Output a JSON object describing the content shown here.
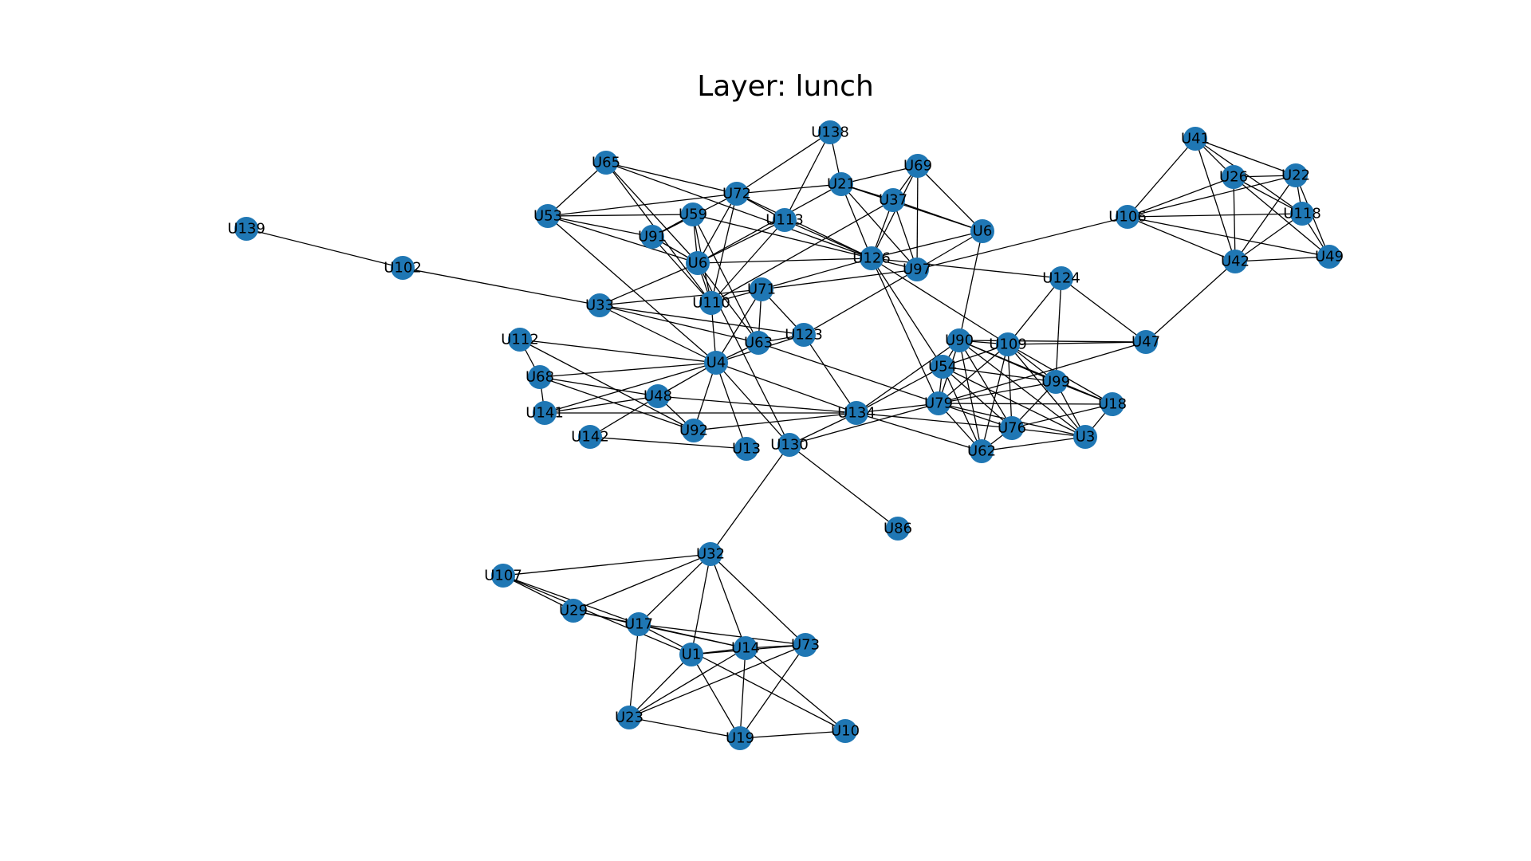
{
  "title": "Layer: lunch",
  "colors": {
    "node": "#1f77b4",
    "edge": "#000000",
    "background": "#ffffff"
  },
  "graph": {
    "nodes": [
      "U139",
      "U102",
      "U33",
      "U112",
      "U68",
      "U141",
      "U142",
      "U48",
      "U4",
      "U92",
      "U13",
      "U130",
      "U86",
      "U65",
      "U53",
      "U91",
      "U59",
      "U6",
      "U72",
      "U110",
      "U71",
      "U63",
      "U123",
      "U113",
      "U138",
      "U21",
      "U69",
      "U37",
      "U6b",
      "U126",
      "U97",
      "U124",
      "U106",
      "U41",
      "U26",
      "U22",
      "U118",
      "U49",
      "U42",
      "U47",
      "U90",
      "U109",
      "U54",
      "U99",
      "U18",
      "U79",
      "U134",
      "U76",
      "U3",
      "U62",
      "U32",
      "U107",
      "U29",
      "U17",
      "U1",
      "U14",
      "U73",
      "U23",
      "U19",
      "U10"
    ],
    "labels": {
      "U6b": "U6"
    },
    "edges": [
      [
        "U139",
        "U102"
      ],
      [
        "U102",
        "U33"
      ],
      [
        "U33",
        "U71"
      ],
      [
        "U33",
        "U63"
      ],
      [
        "U33",
        "U123"
      ],
      [
        "U33",
        "U4"
      ],
      [
        "U33",
        "U6"
      ],
      [
        "U112",
        "U68"
      ],
      [
        "U112",
        "U4"
      ],
      [
        "U112",
        "U92"
      ],
      [
        "U68",
        "U141"
      ],
      [
        "U68",
        "U48"
      ],
      [
        "U68",
        "U92"
      ],
      [
        "U68",
        "U4"
      ],
      [
        "U141",
        "U4"
      ],
      [
        "U141",
        "U48"
      ],
      [
        "U141",
        "U134"
      ],
      [
        "U142",
        "U48"
      ],
      [
        "U142",
        "U13"
      ],
      [
        "U48",
        "U92"
      ],
      [
        "U48",
        "U134"
      ],
      [
        "U48",
        "U4"
      ],
      [
        "U4",
        "U92"
      ],
      [
        "U4",
        "U13"
      ],
      [
        "U4",
        "U130"
      ],
      [
        "U4",
        "U134"
      ],
      [
        "U4",
        "U63"
      ],
      [
        "U4",
        "U123"
      ],
      [
        "U4",
        "U110"
      ],
      [
        "U4",
        "U53"
      ],
      [
        "U4",
        "U71"
      ],
      [
        "U92",
        "U134"
      ],
      [
        "U130",
        "U134"
      ],
      [
        "U130",
        "U86"
      ],
      [
        "U130",
        "U32"
      ],
      [
        "U130",
        "U6"
      ],
      [
        "U130",
        "U79"
      ],
      [
        "U65",
        "U53"
      ],
      [
        "U65",
        "U72"
      ],
      [
        "U65",
        "U110"
      ],
      [
        "U65",
        "U126"
      ],
      [
        "U65",
        "U6"
      ],
      [
        "U53",
        "U72"
      ],
      [
        "U53",
        "U59"
      ],
      [
        "U53",
        "U91"
      ],
      [
        "U53",
        "U6"
      ],
      [
        "U91",
        "U59"
      ],
      [
        "U91",
        "U6"
      ],
      [
        "U91",
        "U110"
      ],
      [
        "U59",
        "U6"
      ],
      [
        "U59",
        "U126"
      ],
      [
        "U59",
        "U63"
      ],
      [
        "U59",
        "U110"
      ],
      [
        "U72",
        "U6"
      ],
      [
        "U72",
        "U110"
      ],
      [
        "U72",
        "U126"
      ],
      [
        "U72",
        "U21"
      ],
      [
        "U72",
        "U113"
      ],
      [
        "U72",
        "U138"
      ],
      [
        "U72",
        "U91"
      ],
      [
        "U6",
        "U21"
      ],
      [
        "U6",
        "U126"
      ],
      [
        "U6",
        "U113"
      ],
      [
        "U6",
        "U110"
      ],
      [
        "U6",
        "U63"
      ],
      [
        "U110",
        "U113"
      ],
      [
        "U110",
        "U71"
      ],
      [
        "U110",
        "U37"
      ],
      [
        "U71",
        "U97"
      ],
      [
        "U71",
        "U123"
      ],
      [
        "U71",
        "U63"
      ],
      [
        "U71",
        "U126"
      ],
      [
        "U63",
        "U123"
      ],
      [
        "U63",
        "U79"
      ],
      [
        "U123",
        "U97"
      ],
      [
        "U123",
        "U134"
      ],
      [
        "U113",
        "U138"
      ],
      [
        "U113",
        "U126"
      ],
      [
        "U138",
        "U21"
      ],
      [
        "U21",
        "U69"
      ],
      [
        "U21",
        "U37"
      ],
      [
        "U21",
        "U126"
      ],
      [
        "U21",
        "U97"
      ],
      [
        "U21",
        "U6b"
      ],
      [
        "U69",
        "U37"
      ],
      [
        "U69",
        "U6b"
      ],
      [
        "U69",
        "U97"
      ],
      [
        "U69",
        "U126"
      ],
      [
        "U37",
        "U6b"
      ],
      [
        "U37",
        "U97"
      ],
      [
        "U37",
        "U126"
      ],
      [
        "U6b",
        "U97"
      ],
      [
        "U6b",
        "U90"
      ],
      [
        "U6b",
        "U126"
      ],
      [
        "U126",
        "U97"
      ],
      [
        "U126",
        "U124"
      ],
      [
        "U126",
        "U54"
      ],
      [
        "U126",
        "U79"
      ],
      [
        "U126",
        "U109"
      ],
      [
        "U97",
        "U106"
      ],
      [
        "U124",
        "U109"
      ],
      [
        "U124",
        "U99"
      ],
      [
        "U124",
        "U47"
      ],
      [
        "U106",
        "U41"
      ],
      [
        "U106",
        "U26"
      ],
      [
        "U106",
        "U22"
      ],
      [
        "U106",
        "U118"
      ],
      [
        "U106",
        "U42"
      ],
      [
        "U106",
        "U49"
      ],
      [
        "U41",
        "U26"
      ],
      [
        "U41",
        "U22"
      ],
      [
        "U41",
        "U42"
      ],
      [
        "U41",
        "U118"
      ],
      [
        "U26",
        "U22"
      ],
      [
        "U26",
        "U42"
      ],
      [
        "U26",
        "U118"
      ],
      [
        "U26",
        "U49"
      ],
      [
        "U22",
        "U118"
      ],
      [
        "U22",
        "U42"
      ],
      [
        "U22",
        "U49"
      ],
      [
        "U118",
        "U42"
      ],
      [
        "U118",
        "U49"
      ],
      [
        "U42",
        "U49"
      ],
      [
        "U42",
        "U47"
      ],
      [
        "U47",
        "U109"
      ],
      [
        "U47",
        "U79"
      ],
      [
        "U47",
        "U90"
      ],
      [
        "U90",
        "U109"
      ],
      [
        "U90",
        "U54"
      ],
      [
        "U90",
        "U79"
      ],
      [
        "U90",
        "U99"
      ],
      [
        "U90",
        "U18"
      ],
      [
        "U90",
        "U76"
      ],
      [
        "U90",
        "U3"
      ],
      [
        "U90",
        "U62"
      ],
      [
        "U90",
        "U134"
      ],
      [
        "U109",
        "U54"
      ],
      [
        "U109",
        "U79"
      ],
      [
        "U109",
        "U99"
      ],
      [
        "U109",
        "U18"
      ],
      [
        "U109",
        "U76"
      ],
      [
        "U109",
        "U3"
      ],
      [
        "U109",
        "U62"
      ],
      [
        "U54",
        "U79"
      ],
      [
        "U54",
        "U76"
      ],
      [
        "U54",
        "U62"
      ],
      [
        "U54",
        "U3"
      ],
      [
        "U54",
        "U134"
      ],
      [
        "U54",
        "U99"
      ],
      [
        "U99",
        "U79"
      ],
      [
        "U99",
        "U76"
      ],
      [
        "U99",
        "U3"
      ],
      [
        "U99",
        "U18"
      ],
      [
        "U18",
        "U79"
      ],
      [
        "U18",
        "U3"
      ],
      [
        "U18",
        "U76"
      ],
      [
        "U79",
        "U134"
      ],
      [
        "U79",
        "U76"
      ],
      [
        "U79",
        "U62"
      ],
      [
        "U79",
        "U3"
      ],
      [
        "U134",
        "U62"
      ],
      [
        "U134",
        "U76"
      ],
      [
        "U76",
        "U3"
      ],
      [
        "U76",
        "U62"
      ],
      [
        "U3",
        "U62"
      ],
      [
        "U32",
        "U107"
      ],
      [
        "U32",
        "U29"
      ],
      [
        "U32",
        "U17"
      ],
      [
        "U32",
        "U1"
      ],
      [
        "U32",
        "U14"
      ],
      [
        "U32",
        "U73"
      ],
      [
        "U107",
        "U29"
      ],
      [
        "U107",
        "U17"
      ],
      [
        "U107",
        "U1"
      ],
      [
        "U29",
        "U17"
      ],
      [
        "U29",
        "U14"
      ],
      [
        "U17",
        "U14"
      ],
      [
        "U17",
        "U73"
      ],
      [
        "U17",
        "U23"
      ],
      [
        "U17",
        "U10"
      ],
      [
        "U1",
        "U14"
      ],
      [
        "U1",
        "U23"
      ],
      [
        "U1",
        "U19"
      ],
      [
        "U1",
        "U73"
      ],
      [
        "U14",
        "U73"
      ],
      [
        "U14",
        "U23"
      ],
      [
        "U14",
        "U19"
      ],
      [
        "U14",
        "U10"
      ],
      [
        "U73",
        "U23"
      ],
      [
        "U73",
        "U19"
      ],
      [
        "U23",
        "U19"
      ],
      [
        "U19",
        "U10"
      ]
    ]
  }
}
